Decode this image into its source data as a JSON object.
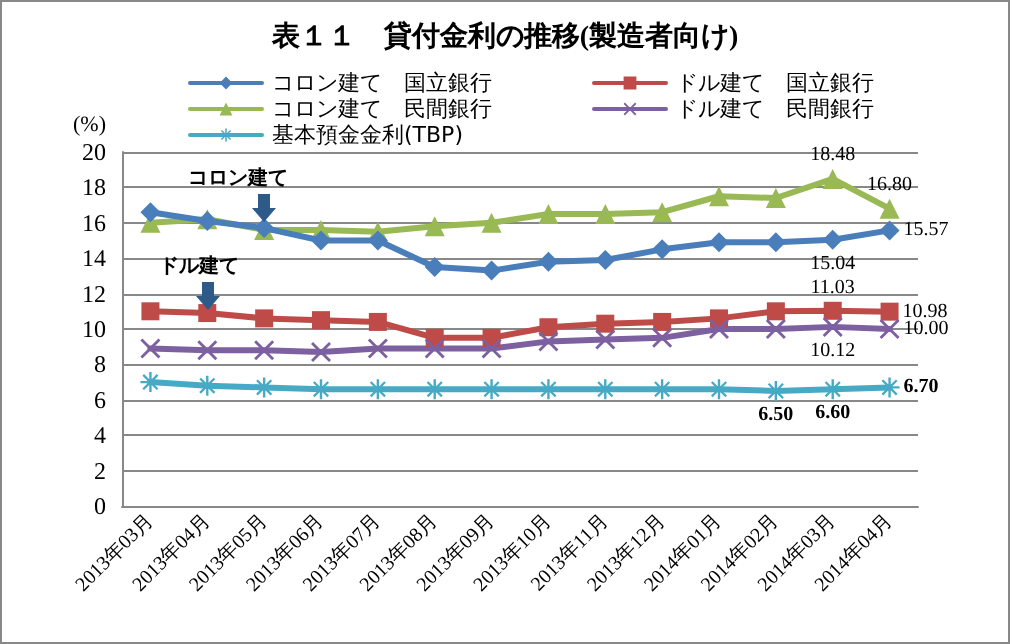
{
  "chart_data": {
    "type": "line",
    "title": "表１１　貸付金利の推移(製造者向け)",
    "ylabel": "(%)",
    "categories": [
      "2013年03月",
      "2013年04月",
      "2013年05月",
      "2013年06月",
      "2013年07月",
      "2013年08月",
      "2013年09月",
      "2013年10月",
      "2013年11月",
      "2013年12月",
      "2014年01月",
      "2014年02月",
      "2014年03月",
      "2014年04月"
    ],
    "series": [
      {
        "name": "コロン建て　国立銀行",
        "color": "#4a7ebb",
        "marker": "diamond",
        "values": [
          16.6,
          16.1,
          15.7,
          15.0,
          15.0,
          13.5,
          13.3,
          13.8,
          13.9,
          14.5,
          14.9,
          14.9,
          15.04,
          15.57
        ],
        "value_labels": [
          null,
          null,
          null,
          null,
          null,
          null,
          null,
          null,
          null,
          null,
          null,
          null,
          "15.04",
          "15.57"
        ]
      },
      {
        "name": "ドル建て　国立銀行",
        "color": "#be4b48",
        "marker": "square",
        "values": [
          11.0,
          10.9,
          10.6,
          10.5,
          10.4,
          9.5,
          9.5,
          10.1,
          10.3,
          10.4,
          10.6,
          11.0,
          11.03,
          10.98
        ],
        "value_labels": [
          null,
          null,
          null,
          null,
          null,
          null,
          null,
          null,
          null,
          null,
          null,
          null,
          "11.03",
          "10.98"
        ]
      },
      {
        "name": "コロン建て　民間銀行",
        "color": "#98b954",
        "marker": "triangle",
        "values": [
          16.0,
          16.2,
          15.6,
          15.6,
          15.5,
          15.8,
          16.0,
          16.5,
          16.5,
          16.6,
          17.5,
          17.4,
          18.48,
          16.8
        ],
        "value_labels": [
          null,
          null,
          null,
          null,
          null,
          null,
          null,
          null,
          null,
          null,
          null,
          null,
          "18.48",
          "16.80"
        ]
      },
      {
        "name": "ドル建て　民間銀行",
        "color": "#7d60a0",
        "marker": "cross",
        "values": [
          8.9,
          8.8,
          8.8,
          8.7,
          8.9,
          8.9,
          8.9,
          9.3,
          9.4,
          9.5,
          10.0,
          10.0,
          10.12,
          10.0
        ],
        "value_labels": [
          null,
          null,
          null,
          null,
          null,
          null,
          null,
          null,
          null,
          null,
          null,
          null,
          "10.12",
          "10.00"
        ]
      },
      {
        "name": "基本預金金利(TBP)",
        "color": "#46aac5",
        "marker": "star",
        "values": [
          7.0,
          6.8,
          6.7,
          6.6,
          6.6,
          6.6,
          6.6,
          6.6,
          6.6,
          6.6,
          6.6,
          6.5,
          6.6,
          6.7
        ],
        "value_labels": [
          null,
          null,
          null,
          null,
          null,
          null,
          null,
          null,
          null,
          null,
          null,
          "6.50",
          "6.60",
          "6.70"
        ]
      }
    ],
    "annotations": [
      "コロン建て",
      "ドル建て"
    ],
    "ylim": [
      0,
      20
    ],
    "yticks": [
      0,
      2,
      4,
      6,
      8,
      10,
      12,
      14,
      16,
      18,
      20
    ],
    "grid": "y",
    "legend": "top",
    "line_style": "solid"
  }
}
